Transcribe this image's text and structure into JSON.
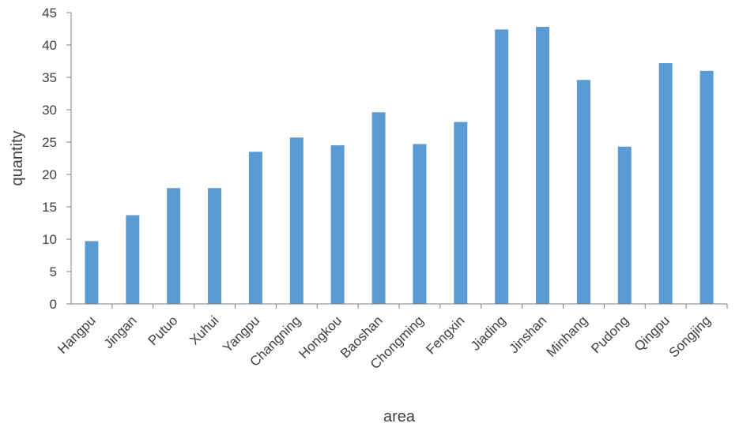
{
  "chart_data": {
    "type": "bar",
    "title": "",
    "xlabel": "area",
    "ylabel": "quantity",
    "categories": [
      "Hangpu",
      "Jingan",
      "Putuo",
      "Xuhui",
      "Yangpu",
      "Changning",
      "Hongkou",
      "Baoshan",
      "Chongming",
      "Fengxin",
      "Jiading",
      "Jinshan",
      "Minhang",
      "Pudong",
      "Qingpu",
      "Songjing"
    ],
    "series": [
      {
        "values": [
          9.7,
          13.7,
          17.9,
          17.9,
          23.5,
          25.7,
          24.5,
          29.6,
          24.7,
          28.1,
          42.4,
          42.8,
          34.6,
          24.3,
          37.2,
          36.0
        ]
      }
    ],
    "ylim": [
      0,
      45
    ],
    "yticks": [
      0,
      5,
      10,
      15,
      20,
      25,
      30,
      35,
      40,
      45
    ],
    "grid": false,
    "legend": "none",
    "bar_color": "#5b9bd5",
    "axis_color": "#7f7f7f"
  }
}
